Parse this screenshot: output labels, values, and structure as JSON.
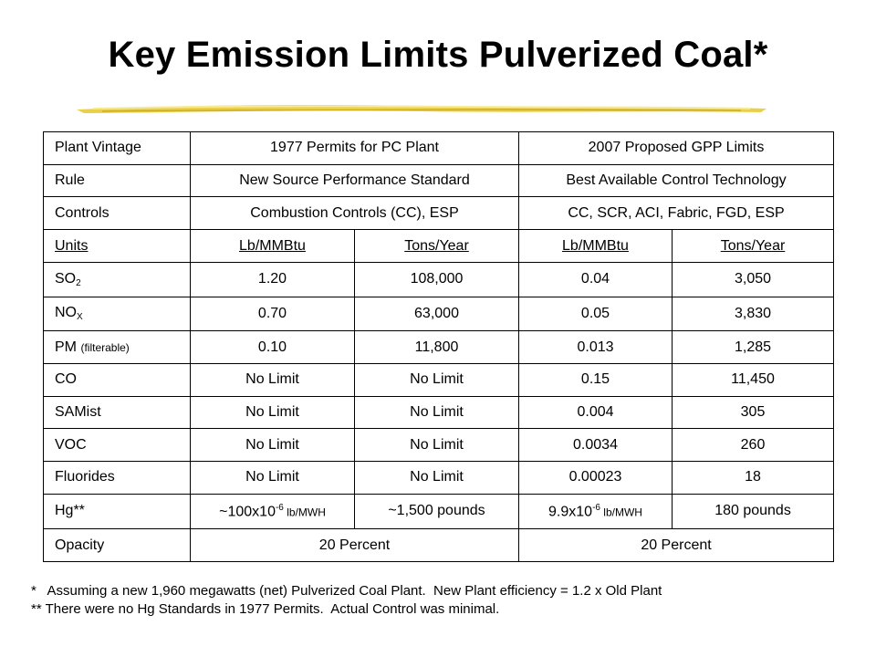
{
  "title": "Key Emission Limits Pulverized Coal*",
  "table": {
    "header": {
      "label": "Plant Vintage",
      "col1977": "1977 Permits for PC Plant",
      "col2007": "2007 Proposed GPP Limits"
    },
    "rule": {
      "label": "Rule",
      "v1977": "New Source Performance Standard",
      "v2007": "Best Available Control Technology"
    },
    "controls": {
      "label": "Controls",
      "v1977": "Combustion Controls (CC), ESP",
      "v2007": "CC, SCR, ACI, Fabric, FGD, ESP"
    },
    "units": {
      "label": "Units",
      "a": "Lb/MMBtu",
      "b": "Tons/Year",
      "c": "Lb/MMBtu",
      "d": "Tons/Year"
    },
    "so2": {
      "label_main": "SO",
      "label_sub": "2",
      "a": "1.20",
      "b": "108,000",
      "c": "0.04",
      "d": "3,050"
    },
    "nox": {
      "label_main": "NO",
      "label_sub": "X",
      "a": "0.70",
      "b": "63,000",
      "c": "0.05",
      "d": "3,830"
    },
    "pm": {
      "label_main": "PM ",
      "label_small": "(filterable)",
      "a": "0.10",
      "b": "11,800",
      "c": "0.013",
      "d": "1,285"
    },
    "co": {
      "label": "CO",
      "a": "No Limit",
      "b": "No Limit",
      "c": "0.15",
      "d": "11,450"
    },
    "samist": {
      "label": "SAMist",
      "a": "No Limit",
      "b": "No Limit",
      "c": "0.004",
      "d": "305"
    },
    "voc": {
      "label": "VOC",
      "a": "No Limit",
      "b": "No Limit",
      "c": "0.0034",
      "d": "260"
    },
    "fluorides": {
      "label": "Fluorides",
      "a": "No Limit",
      "b": "No Limit",
      "c": "0.00023",
      "d": "18"
    },
    "hg": {
      "label": "Hg**",
      "a_pre": "~100x10",
      "a_exp": "-6",
      "a_unit": " lb/MWH",
      "b": "~1,500 pounds",
      "c_pre": "9.9x10",
      "c_exp": "-6",
      "c_unit": " lb/MWH",
      "d": "180 pounds"
    },
    "opacity": {
      "label": "Opacity",
      "v1977": "20 Percent",
      "v2007": "20 Percent"
    }
  },
  "footnotes": {
    "one": "*   Assuming a new 1,960 megawatts (net) Pulverized Coal Plant.  New Plant efficiency = 1.2 x Old Plant",
    "two": "** There were no Hg Standards in 1977 Permits.  Actual Control was minimal."
  },
  "colors": {
    "underline_light": "#f2e27a",
    "underline_dark": "#c9a81c"
  }
}
